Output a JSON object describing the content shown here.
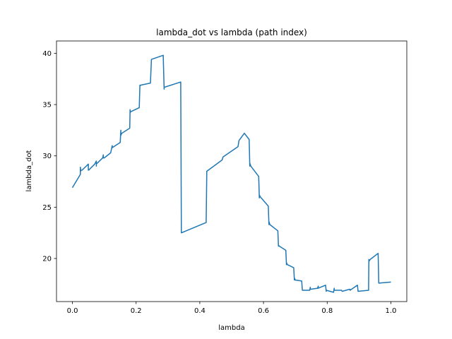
{
  "chart_data": {
    "type": "line",
    "title": "lambda_dot vs lambda (path index)",
    "xlabel": "lambda",
    "ylabel": "lambda_dot",
    "xlim": [
      -0.05,
      1.05
    ],
    "ylim": [
      15.8,
      41.2
    ],
    "xticks": [
      0.0,
      0.2,
      0.4,
      0.6,
      0.8,
      1.0
    ],
    "xtick_labels": [
      "0.0",
      "0.2",
      "0.4",
      "0.6",
      "0.8",
      "1.0"
    ],
    "yticks": [
      20,
      25,
      30,
      35,
      40
    ],
    "ytick_labels": [
      "20",
      "25",
      "30",
      "35",
      "40"
    ],
    "grid": false,
    "color": "#1f77b4",
    "series": [
      {
        "x": [
          0.0,
          0.025,
          0.025,
          0.026,
          0.026,
          0.03,
          0.05,
          0.05,
          0.051,
          0.07,
          0.075,
          0.075,
          0.075,
          0.095,
          0.097,
          0.097,
          0.1,
          0.12,
          0.125,
          0.125,
          0.15,
          0.152,
          0.152,
          0.155,
          0.18,
          0.181,
          0.181,
          0.183,
          0.21,
          0.212,
          0.212,
          0.215,
          0.245,
          0.248,
          0.285,
          0.288,
          0.288,
          0.29,
          0.34,
          0.342,
          0.42,
          0.422,
          0.47,
          0.473,
          0.52,
          0.523,
          0.54,
          0.555,
          0.557,
          0.557,
          0.56,
          0.585,
          0.587,
          0.587,
          0.59,
          0.615,
          0.617,
          0.617,
          0.62,
          0.645,
          0.647,
          0.647,
          0.65,
          0.67,
          0.672,
          0.672,
          0.675,
          0.695,
          0.697,
          0.697,
          0.7,
          0.72,
          0.722,
          0.745,
          0.747,
          0.747,
          0.77,
          0.772,
          0.772,
          0.795,
          0.797,
          0.797,
          0.82,
          0.822,
          0.822,
          0.845,
          0.847,
          0.847,
          0.87,
          0.872,
          0.872,
          0.895,
          0.897,
          0.897,
          0.93,
          0.931,
          0.931,
          0.935,
          0.96,
          0.962,
          1.0
        ],
        "y": [
          26.9,
          28.2,
          28.9,
          28.5,
          28.6,
          28.6,
          29.2,
          28.6,
          28.6,
          29.2,
          29.5,
          29.0,
          29.2,
          29.8,
          30.1,
          29.8,
          29.8,
          30.3,
          31.0,
          30.8,
          31.3,
          32.5,
          32.0,
          32.2,
          32.7,
          34.5,
          34.2,
          34.3,
          34.7,
          36.9,
          36.8,
          36.9,
          37.1,
          39.4,
          39.8,
          36.5,
          36.7,
          36.7,
          37.2,
          22.5,
          23.5,
          28.5,
          29.6,
          29.9,
          30.9,
          31.5,
          32.2,
          31.6,
          29.0,
          29.3,
          29.0,
          28.0,
          25.9,
          26.2,
          26.0,
          25.1,
          23.3,
          23.6,
          23.3,
          22.7,
          21.2,
          21.3,
          21.2,
          20.8,
          19.4,
          19.6,
          19.4,
          19.1,
          17.9,
          18.1,
          17.9,
          17.8,
          16.9,
          16.9,
          17.2,
          17.0,
          17.1,
          17.3,
          17.1,
          17.4,
          16.8,
          16.9,
          16.7,
          17.1,
          16.9,
          16.9,
          16.8,
          16.8,
          17.0,
          17.0,
          16.9,
          17.4,
          16.8,
          16.8,
          16.9,
          19.9,
          19.7,
          19.9,
          20.5,
          17.6,
          17.7
        ]
      }
    ]
  }
}
